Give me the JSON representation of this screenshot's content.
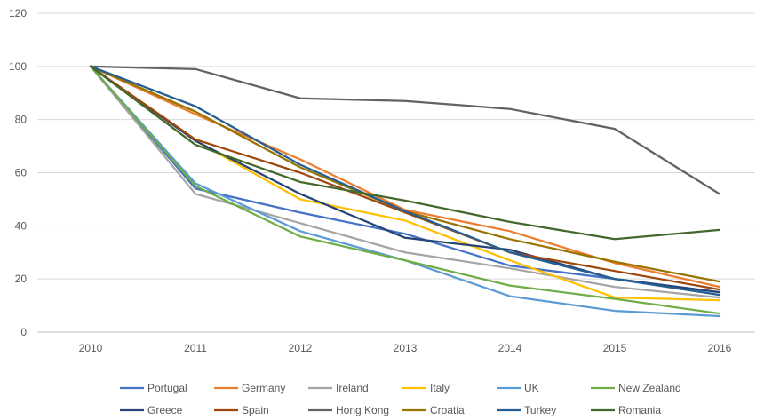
{
  "chart_data": {
    "type": "line",
    "x": [
      "2010",
      "2011",
      "2012",
      "2013",
      "2014",
      "2015",
      "2016"
    ],
    "ylim": [
      0,
      120
    ],
    "yticks": [
      0,
      20,
      40,
      60,
      80,
      100,
      120
    ],
    "grid": true,
    "legend_position": "bottom",
    "series": [
      {
        "name": "Portugal",
        "color": "#4472C4",
        "values": [
          100,
          54,
          45,
          37,
          25,
          20,
          15
        ]
      },
      {
        "name": "Germany",
        "color": "#ED7D31",
        "values": [
          100,
          82,
          65,
          46,
          38,
          26,
          17
        ]
      },
      {
        "name": "Ireland",
        "color": "#A5A5A5",
        "values": [
          100,
          52,
          41,
          30,
          24,
          17,
          13
        ]
      },
      {
        "name": "Italy",
        "color": "#FFC000",
        "values": [
          100,
          72,
          50,
          42,
          27,
          13,
          12
        ]
      },
      {
        "name": "UK",
        "color": "#5B9BD5",
        "values": [
          100,
          56,
          38,
          27,
          13.5,
          8,
          6
        ]
      },
      {
        "name": "New Zealand",
        "color": "#70AD47",
        "values": [
          100,
          55,
          36,
          27,
          17.5,
          12.5,
          7
        ]
      },
      {
        "name": "Greece",
        "color": "#264478",
        "values": [
          100,
          72,
          52,
          35.5,
          31,
          20,
          15
        ]
      },
      {
        "name": "Spain",
        "color": "#9E480E",
        "values": [
          100,
          72.5,
          60,
          45,
          30,
          23,
          16
        ]
      },
      {
        "name": "Hong Kong",
        "color": "#636363",
        "values": [
          100,
          99,
          88,
          87,
          84,
          76.5,
          52
        ]
      },
      {
        "name": "Croatia",
        "color": "#997300",
        "values": [
          100,
          83,
          62,
          45.5,
          35,
          26.5,
          19
        ]
      },
      {
        "name": "Turkey",
        "color": "#255E91",
        "values": [
          100,
          85,
          63,
          45.5,
          30,
          20,
          14
        ]
      },
      {
        "name": "Romania",
        "color": "#43682B",
        "values": [
          100,
          70.5,
          56.5,
          49.5,
          41.5,
          35,
          38.5
        ]
      }
    ]
  }
}
